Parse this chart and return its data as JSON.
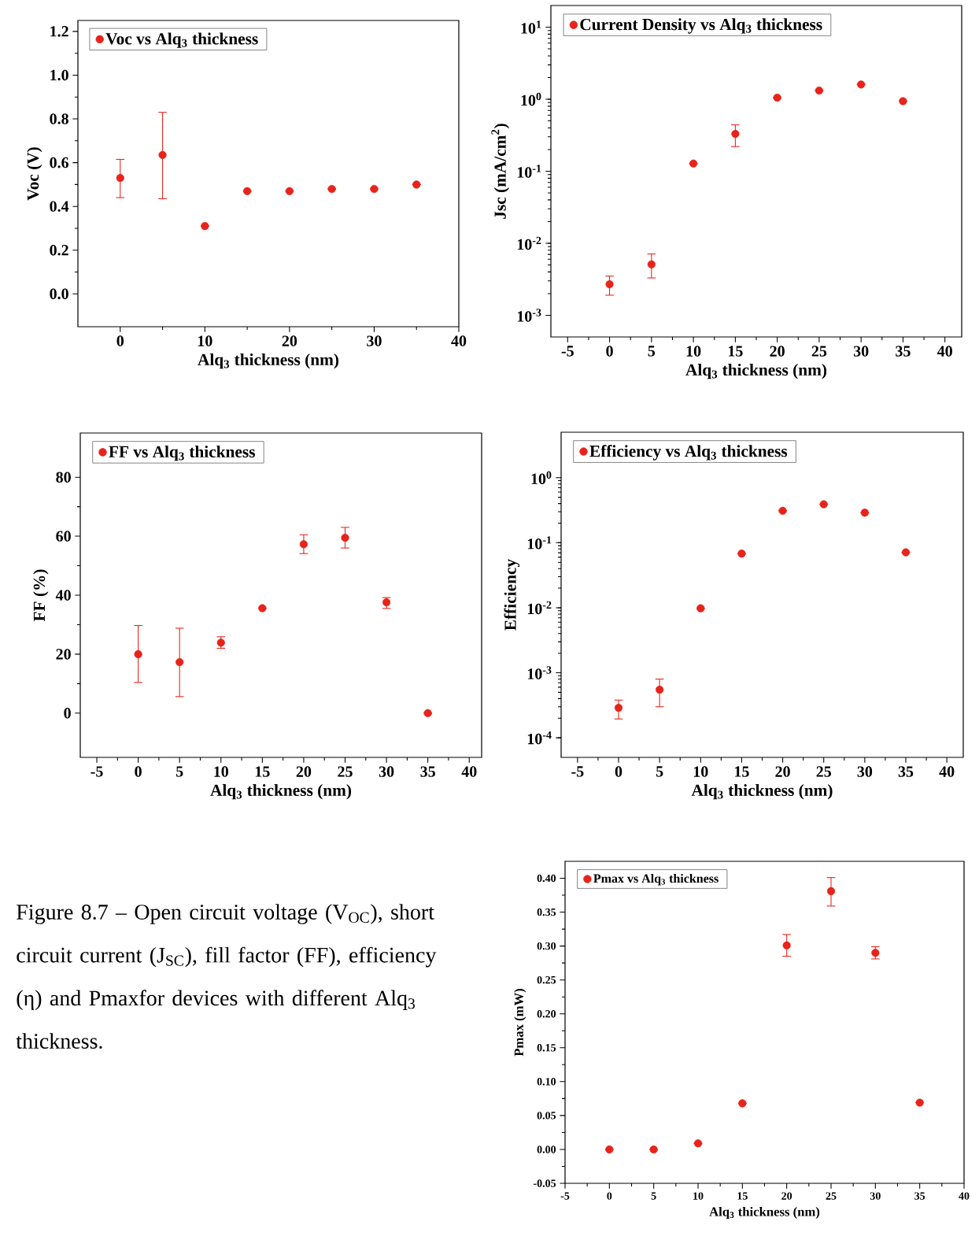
{
  "chart_data": [
    {
      "type": "scatter",
      "xlabel": "Alq$_{3}$ thickness (nm)",
      "ylabel": "Voc (V)",
      "x": [
        0,
        5,
        10,
        15,
        20,
        25,
        30,
        35
      ],
      "series": [
        {
          "name": "Voc vs Alq$_{3}$ thickness",
          "color": "#e8231a",
          "values": [
            0.53,
            0.635,
            0.31,
            0.47,
            0.47,
            0.48,
            0.48,
            0.5
          ],
          "errors": [
            [
              0.44,
              0.615
            ],
            [
              0.435,
              0.83
            ],
            null,
            null,
            null,
            null,
            null,
            null
          ]
        }
      ],
      "xlim": [
        -5,
        40
      ],
      "ylim": [
        -0.15,
        1.25
      ],
      "xticks": [
        0,
        10,
        20,
        30,
        40
      ],
      "yticks": [
        {
          "value": 0,
          "label": "0.0"
        },
        {
          "value": 0.2,
          "label": "0.2"
        },
        {
          "value": 0.4,
          "label": "0.4"
        },
        {
          "value": 0.6,
          "label": "0.6"
        },
        {
          "value": 0.8,
          "label": "0.8"
        },
        {
          "value": 1,
          "label": "1.0"
        },
        {
          "value": 1.2,
          "label": "1.2"
        }
      ],
      "legend": "top left",
      "marker": "circle"
    },
    {
      "type": "scatter",
      "xlabel": "Alq$_{3}$ thickness (nm)",
      "ylabel": "Jsc (mA/cm$^{2}$)",
      "x": [
        0,
        5,
        10,
        15,
        20,
        25,
        30,
        35
      ],
      "series": [
        {
          "name": "Current Density vs Alq$_{3}$ thickness",
          "color": "#e8231a",
          "values": [
            0.0027,
            0.0051,
            0.128,
            0.33,
            1.05,
            1.32,
            1.6,
            0.94
          ],
          "errors": [
            [
              0.0019,
              0.0035
            ],
            [
              0.0033,
              0.0071
            ],
            null,
            [
              0.22,
              0.44
            ],
            null,
            null,
            null,
            null
          ]
        }
      ],
      "xlim": [
        -7,
        42
      ],
      "ylim": [
        0.0005,
        20
      ],
      "xticks": [
        -5,
        0,
        5,
        10,
        15,
        20,
        25,
        30,
        35,
        40
      ],
      "yticks": [
        {
          "value": 0.001,
          "label": "10$^{-3}$"
        },
        {
          "value": 0.01,
          "label": "10$^{-2}$"
        },
        {
          "value": 0.1,
          "label": "10$^{-1}$"
        },
        {
          "value": 1,
          "label": "10$^{0}$"
        },
        {
          "value": 10,
          "label": "10$^{1}$"
        }
      ],
      "log": "y",
      "legend": "top left",
      "marker": "circle"
    },
    {
      "type": "scatter",
      "xlabel": "Alq$_{3}$ thickness (nm)",
      "ylabel": "FF (%)",
      "x": [
        0,
        5,
        10,
        15,
        20,
        25,
        30,
        35
      ],
      "series": [
        {
          "name": "FF vs Alq$_{3}$ thickness",
          "color": "#e8231a",
          "values": [
            20,
            17.3,
            23.9,
            35.6,
            57.3,
            59.5,
            37.6,
            0
          ],
          "errors": [
            [
              10.4,
              29.7
            ],
            [
              5.6,
              28.8
            ],
            [
              22,
              25.9
            ],
            null,
            [
              54.1,
              60.5
            ],
            [
              56,
              63
            ],
            [
              35.5,
              39.2
            ],
            null
          ]
        }
      ],
      "xlim": [
        -7,
        41.5
      ],
      "ylim": [
        -15,
        95
      ],
      "xticks": [
        -5,
        0,
        5,
        10,
        15,
        20,
        25,
        30,
        35,
        40
      ],
      "yticks": [
        0,
        20,
        40,
        60,
        80
      ],
      "legend": "top left",
      "marker": "circle"
    },
    {
      "type": "scatter",
      "xlabel": "Alq$_{3}$ thickness (nm)",
      "ylabel": "Efficiency",
      "x": [
        0,
        5,
        10,
        15,
        20,
        25,
        30,
        35
      ],
      "series": [
        {
          "name": "Efficiency vs Alq$_{3}$ thickness",
          "color": "#e8231a",
          "values": [
            0.00029,
            0.00055,
            0.0098,
            0.068,
            0.31,
            0.39,
            0.29,
            0.071
          ],
          "errors": [
            [
              0.000195,
              0.00038
            ],
            [
              0.0003,
              0.0008
            ],
            null,
            null,
            null,
            null,
            null,
            null
          ]
        }
      ],
      "xlim": [
        -7,
        42
      ],
      "ylim": [
        5e-05,
        5
      ],
      "xticks": [
        -5,
        0,
        5,
        10,
        15,
        20,
        25,
        30,
        35,
        40
      ],
      "yticks": [
        {
          "value": 0.0001,
          "label": "10$^{-4}$"
        },
        {
          "value": 0.001,
          "label": "10$^{-3}$"
        },
        {
          "value": 0.01,
          "label": "10$^{-2}$"
        },
        {
          "value": 0.1,
          "label": "10$^{-1}$"
        },
        {
          "value": 1,
          "label": "10$^{0}$"
        }
      ],
      "log": "y",
      "legend": "top left",
      "marker": "circle"
    },
    {
      "type": "scatter",
      "xlabel": "Alq$_{3}$ thickness (nm)",
      "ylabel": "Pmax (mW)",
      "x": [
        0,
        5,
        10,
        15,
        20,
        25,
        30,
        35
      ],
      "series": [
        {
          "name": "Pmax vs Alq$_{3}$ thickness",
          "color": "#e8231a",
          "values": [
            0,
            0,
            0.009,
            0.068,
            0.301,
            0.381,
            0.29,
            0.069
          ],
          "errors": [
            null,
            null,
            null,
            null,
            [
              0.285,
              0.317
            ],
            [
              0.359,
              0.401
            ],
            [
              0.281,
              0.299
            ],
            null
          ]
        }
      ],
      "xlim": [
        -5,
        40
      ],
      "ylim": [
        -0.05,
        0.425
      ],
      "xticks": [
        -5,
        0,
        5,
        10,
        15,
        20,
        25,
        30,
        35,
        40
      ],
      "yticks": [
        {
          "value": -0.05,
          "label": "-0.05"
        },
        {
          "value": 0,
          "label": "0.00"
        },
        {
          "value": 0.05,
          "label": "0.05"
        },
        {
          "value": 0.1,
          "label": "0.10"
        },
        {
          "value": 0.15,
          "label": "0.15"
        },
        {
          "value": 0.2,
          "label": "0.20"
        },
        {
          "value": 0.25,
          "label": "0.25"
        },
        {
          "value": 0.3,
          "label": "0.30"
        },
        {
          "value": 0.35,
          "label": "0.35"
        },
        {
          "value": 0.4,
          "label": "0.40"
        }
      ],
      "legend": "top left",
      "marker": "circle"
    },
    {
      "type": "other",
      "annotations": [
        "Figure 8.7 – Open circuit voltage (V$_{OC}$), short circuit current (J$_{SC}$), fill factor (FF), efficiency (η) and Pmaxfor devices with different Alq$_{3}$ thickness."
      ]
    }
  ]
}
